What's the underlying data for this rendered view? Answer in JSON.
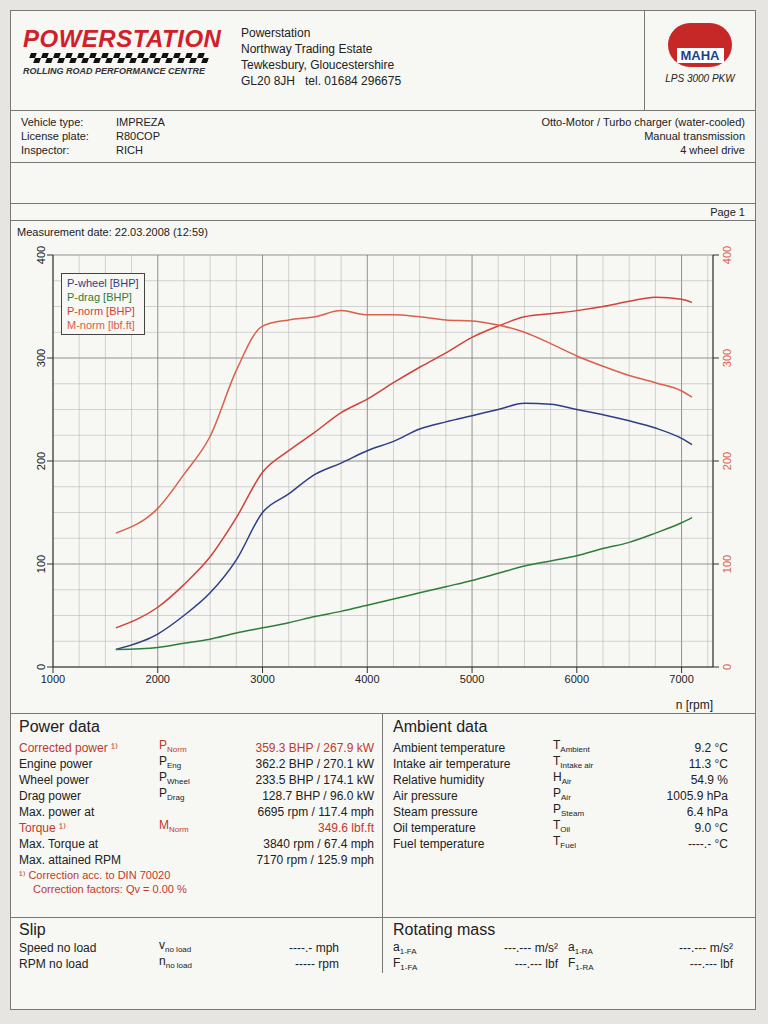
{
  "header": {
    "logo": "POWERSTATION",
    "tagline": "ROLLING ROAD PERFORMANCE CENTRE",
    "address": [
      "Powerstation",
      "Northway Trading Estate",
      "Tewkesbury, Gloucestershire",
      "GL20 8JH   tel. 01684 296675"
    ],
    "brand": "MAHA",
    "model": "LPS 3000 PKW"
  },
  "vehicle": {
    "rows": [
      {
        "label": "Vehicle type:",
        "value": "IMPREZA"
      },
      {
        "label": "License plate:",
        "value": "R80COP"
      },
      {
        "label": "Inspector:",
        "value": "RICH"
      }
    ],
    "details": [
      "Otto-Motor / Turbo charger (water-cooled)",
      "Manual transmission",
      "4 wheel drive"
    ]
  },
  "page": "Page 1",
  "measurement": "Measurement date: 22.03.2008 (12:59)",
  "chart_data": {
    "type": "line",
    "xlabel": "n [rpm]",
    "x": [
      1600,
      2000,
      2250,
      2500,
      2750,
      3000,
      3250,
      3500,
      3750,
      4000,
      4250,
      4500,
      4750,
      5000,
      5250,
      5500,
      5750,
      6000,
      6250,
      6500,
      6750,
      7000,
      7100
    ],
    "xlim": [
      1000,
      7300
    ],
    "xticks": [
      1000,
      2000,
      3000,
      4000,
      5000,
      6000,
      7000
    ],
    "ylim": [
      0,
      400
    ],
    "yticks": [
      0,
      100,
      200,
      300,
      400
    ],
    "y2lim": [
      0,
      400
    ],
    "y2ticks": [
      0,
      100,
      200,
      300,
      400
    ],
    "grid": true,
    "legend": "upper left",
    "series": [
      {
        "name": "P-wheel [BHP]",
        "color": "#2e3f86",
        "values": [
          17,
          32,
          50,
          72,
          104,
          150,
          168,
          187,
          198,
          210,
          219,
          231,
          238,
          244,
          250,
          256,
          255,
          250,
          245,
          239,
          232,
          222,
          216
        ]
      },
      {
        "name": "P-drag [BHP]",
        "color": "#2f7d3a",
        "values": [
          17,
          19,
          23,
          27,
          33,
          38,
          43,
          49,
          54,
          60,
          66,
          72,
          78,
          84,
          91,
          98,
          103,
          108,
          115,
          121,
          130,
          140,
          145
        ]
      },
      {
        "name": "P-norm [BHP]",
        "color": "#d2413a",
        "values": [
          38,
          58,
          80,
          107,
          145,
          189,
          210,
          228,
          247,
          260,
          276,
          291,
          305,
          320,
          331,
          340,
          343,
          346,
          350,
          355,
          359,
          357,
          354
        ]
      },
      {
        "name": "M-norm [lbf.ft]",
        "color": "#d9604a",
        "axis": "y2",
        "values": [
          130,
          154,
          187,
          224,
          288,
          331,
          337,
          340,
          346,
          342,
          342,
          340,
          337,
          336,
          332,
          325,
          314,
          302,
          292,
          283,
          276,
          268,
          262
        ]
      }
    ]
  },
  "power_data": {
    "title": "Power data",
    "rows": [
      {
        "label": "Corrected power ¹⁾",
        "symbol": "P",
        "sub": "Norm",
        "value": "359.3 BHP / 267.9 kW",
        "color": "#c0392b"
      },
      {
        "label": "Engine power",
        "symbol": "P",
        "sub": "Eng",
        "value": "362.2 BHP / 270.1 kW"
      },
      {
        "label": "Wheel power",
        "symbol": "P",
        "sub": "Wheel",
        "value": "233.5 BHP / 174.1 kW"
      },
      {
        "label": "Drag power",
        "symbol": "P",
        "sub": "Drag",
        "value": "128.7 BHP / 96.0 kW"
      },
      {
        "label": "Max. power at",
        "value": "6695 rpm / 117.4 mph"
      },
      {
        "label": "Torque ¹⁾",
        "symbol": "M",
        "sub": "Norm",
        "value": "349.6 lbf.ft",
        "color": "#c0392b"
      },
      {
        "label": "Max. Torque at",
        "value": "3840 rpm / 67.4 mph"
      },
      {
        "label": "Max. attained RPM",
        "value": "7170 rpm / 125.9 mph"
      }
    ],
    "footnotes": [
      "¹⁾ Correction acc. to DIN 70020",
      "Correction factors: Qv = 0.00 %"
    ]
  },
  "ambient_data": {
    "title": "Ambient data",
    "rows": [
      {
        "label": "Ambient temperature",
        "symbol": "T",
        "sub": "Ambient",
        "value": "9.2 °C"
      },
      {
        "label": "Intake air temperature",
        "symbol": "T",
        "sub": "Intake air",
        "value": "11.3 °C"
      },
      {
        "label": "Relative humidity",
        "symbol": "H",
        "sub": "Air",
        "value": "54.9 %"
      },
      {
        "label": "Air pressure",
        "symbol": "P",
        "sub": "Air",
        "value": "1005.9 hPa"
      },
      {
        "label": "Steam pressure",
        "symbol": "P",
        "sub": "Steam",
        "value": "6.4 hPa"
      },
      {
        "label": "Oil temperature",
        "symbol": "T",
        "sub": "Oil",
        "value": "9.0 °C"
      },
      {
        "label": "Fuel temperature",
        "symbol": "T",
        "sub": "Fuel",
        "value": "----.- °C"
      }
    ]
  },
  "slip": {
    "title": "Slip",
    "rows": [
      {
        "label": "Speed no load",
        "symbol": "v",
        "sub": "no load",
        "value": "----.- mph"
      },
      {
        "label": "RPM no load",
        "symbol": "n",
        "sub": "no load",
        "value": "----- rpm"
      }
    ]
  },
  "rotating_mass": {
    "title": "Rotating mass",
    "rows": [
      {
        "symbol": "a",
        "sub": "1-FA",
        "value": "---.--- m/s²"
      },
      {
        "symbol": "a",
        "sub": "1-RA",
        "value": "---.--- m/s²"
      },
      {
        "symbol": "F",
        "sub": "1-FA",
        "value": "---.--- lbf"
      },
      {
        "symbol": "F",
        "sub": "1-RA",
        "value": "---.--- lbf"
      }
    ]
  }
}
